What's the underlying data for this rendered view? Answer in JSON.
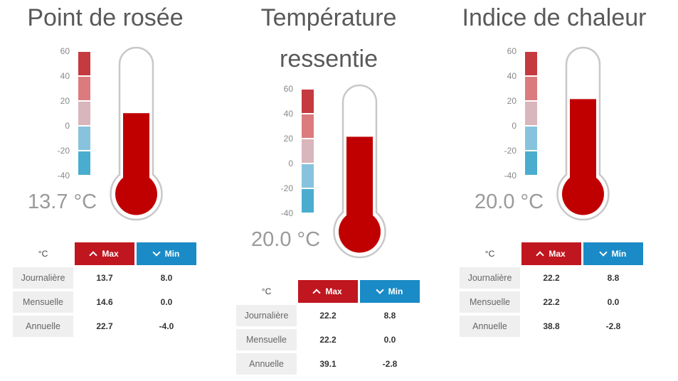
{
  "unit_label": "°C",
  "headers": {
    "max": "Max",
    "min": "Min"
  },
  "scale": [
    "60",
    "40",
    "20",
    "0",
    "-20",
    "-40"
  ],
  "scale_colors": [
    "#c53a3f",
    "#db7b7e",
    "#d9b5bc",
    "#88c3de",
    "#4aadcf"
  ],
  "colors": {
    "fill": "#c00000",
    "max": "#c0161f",
    "min": "#1a8bc6"
  },
  "rows_labels": [
    "Journalière",
    "Mensuelle",
    "Annuelle"
  ],
  "panels": [
    {
      "title_lines": [
        "Point de rosée"
      ],
      "temperature": "13.7 °C",
      "level": 0.56,
      "rows": [
        {
          "max": "13.7",
          "min": "8.0"
        },
        {
          "max": "14.6",
          "min": "0.0"
        },
        {
          "max": "22.7",
          "min": "-4.0"
        }
      ]
    },
    {
      "title_lines": [
        "Température",
        "ressentie"
      ],
      "temperature": "20.0 °C",
      "level": 0.67,
      "rows": [
        {
          "max": "22.2",
          "min": "8.8"
        },
        {
          "max": "22.2",
          "min": "0.0"
        },
        {
          "max": "39.1",
          "min": "-2.8"
        }
      ]
    },
    {
      "title_lines": [
        "Indice de chaleur"
      ],
      "temperature": "20.0 °C",
      "level": 0.67,
      "rows": [
        {
          "max": "22.2",
          "min": "8.8"
        },
        {
          "max": "22.2",
          "min": "0.0"
        },
        {
          "max": "38.8",
          "min": "-2.8"
        }
      ]
    }
  ]
}
